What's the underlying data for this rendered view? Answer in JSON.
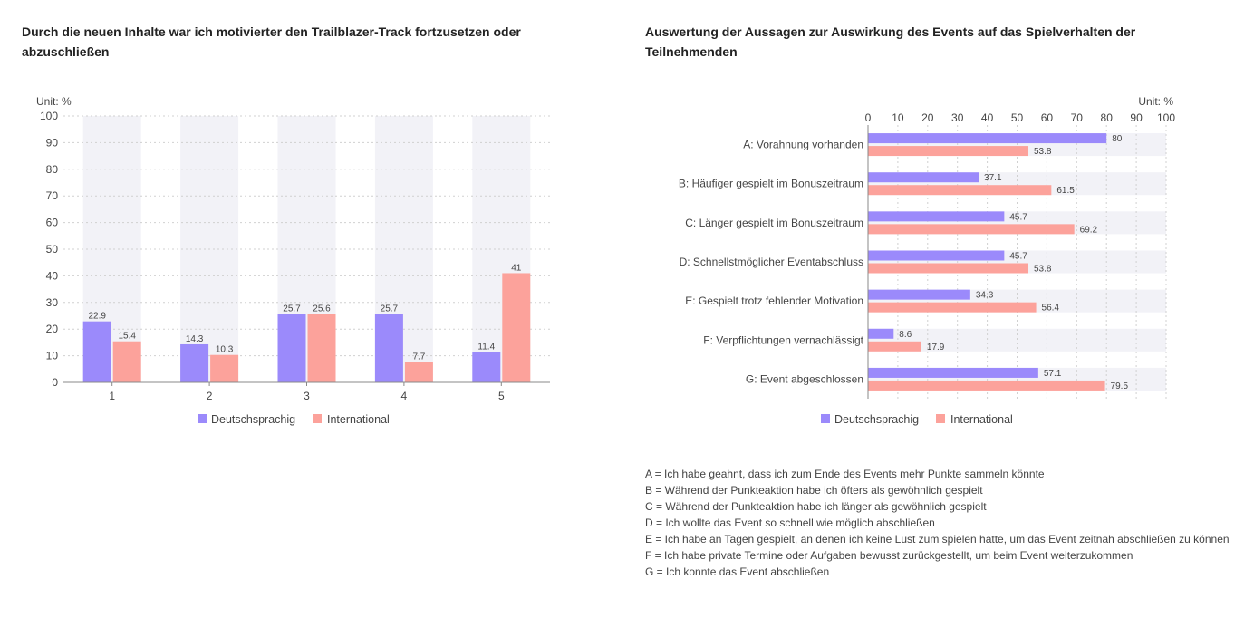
{
  "colors": {
    "deutsch": "#9b8afb",
    "international": "#fca29b",
    "band": "#f2f2f7",
    "grid": "#d0d0d0",
    "axis": "#888888"
  },
  "left_chart": {
    "title": "Durch die neuen Inhalte war ich motivierter den Trailblazer-Track fortzusetzen oder abzuschließen",
    "unit": "Unit: %"
  },
  "right_chart": {
    "title": "Auswertung der Aussagen zur Auswirkung des Events auf das Spielverhalten der Teilnehmenden",
    "unit": "Unit: %"
  },
  "legend": {
    "deutsch": "Deutschsprachig",
    "international": "International"
  },
  "chart_data": [
    {
      "type": "bar",
      "orientation": "vertical",
      "categories": [
        "1",
        "2",
        "3",
        "4",
        "5"
      ],
      "series": [
        {
          "name": "Deutschsprachig",
          "values": [
            22.9,
            14.3,
            25.7,
            25.7,
            11.4
          ]
        },
        {
          "name": "International",
          "values": [
            15.4,
            10.3,
            25.6,
            7.7,
            41
          ]
        }
      ],
      "ylim": [
        0,
        100
      ],
      "yticks": [
        0,
        10,
        20,
        30,
        40,
        50,
        60,
        70,
        80,
        90,
        100
      ],
      "grid": true,
      "legend": "bottom"
    },
    {
      "type": "bar",
      "orientation": "horizontal",
      "categories": [
        "A: Vorahnung vorhanden",
        "B: Häufiger gespielt im Bonuszeitraum",
        "C: Länger gespielt im Bonuszeitraum",
        "D: Schnellstmöglicher Eventabschluss",
        "E: Gespielt trotz fehlender Motivation",
        "F: Verpflichtungen vernachlässigt",
        "G: Event abgeschlossen"
      ],
      "series": [
        {
          "name": "Deutschsprachig",
          "values": [
            80,
            37.1,
            45.7,
            45.7,
            34.3,
            8.6,
            57.1
          ]
        },
        {
          "name": "International",
          "values": [
            53.8,
            61.5,
            69.2,
            53.8,
            56.4,
            17.9,
            79.5
          ]
        }
      ],
      "xlim": [
        0,
        100
      ],
      "xticks": [
        0,
        10,
        20,
        30,
        40,
        50,
        60,
        70,
        80,
        90,
        100
      ],
      "grid": true,
      "legend": "bottom"
    }
  ],
  "footnotes": [
    "A = Ich habe geahnt, dass ich zum Ende des Events mehr Punkte sammeln könnte",
    "B =  Während der Punkteaktion habe ich öfters als gewöhnlich gespielt",
    "C = Während der Punkteaktion habe ich länger als gewöhnlich gespielt",
    "D = Ich wollte das Event so schnell wie möglich abschließen",
    "E = Ich habe an Tagen gespielt, an denen ich keine Lust zum spielen hatte, um das Event zeitnah abschließen zu können",
    "F = Ich habe private Termine oder Aufgaben bewusst zurückgestellt, um beim Event weiterzukommen",
    "G = Ich konnte das Event abschließen"
  ]
}
